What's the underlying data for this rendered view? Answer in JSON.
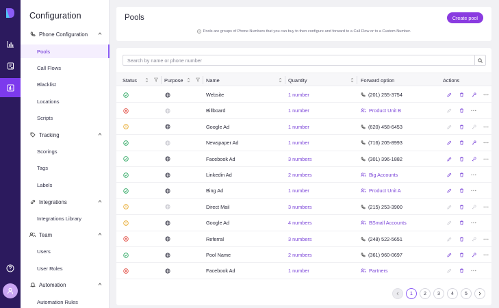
{
  "sidebar": {
    "title": "Configuration",
    "sections": [
      {
        "label": "Phone Configuration",
        "icon": "phone-icon",
        "items": [
          "Pools",
          "Call Flows",
          "Blacklist",
          "Locations",
          "Scripts"
        ]
      },
      {
        "label": "Tracking",
        "icon": "tag-icon",
        "items": [
          "Scorings",
          "Tags",
          "Labels"
        ]
      },
      {
        "label": "Integrations",
        "icon": "link-icon",
        "items": [
          "Integrations Library"
        ]
      },
      {
        "label": "Team",
        "icon": "users-icon",
        "items": [
          "Users",
          "User Roles"
        ]
      },
      {
        "label": "Automation",
        "icon": "bell-icon",
        "items": [
          "Automation Rules"
        ]
      }
    ],
    "active_item": "Pools"
  },
  "header": {
    "title": "Pools",
    "create_label": "Create pool",
    "note": "Pools are groups of Phone Numbers that you can buy to then configure and forward to a Call Flow or to a Custom Number."
  },
  "search": {
    "placeholder": "Search by name or phone number"
  },
  "columns": {
    "status": "Status",
    "purpose": "Purpose",
    "name": "Name",
    "quantity": "Quantity",
    "forward": "Forward option",
    "actions": "Actions"
  },
  "rows": [
    {
      "status": "ok",
      "purpose_on": true,
      "name": "Website",
      "quantity": "1 number",
      "forward_type": "phone",
      "forward": "(201) 255-3754",
      "enabled": true
    },
    {
      "status": "error",
      "purpose_on": false,
      "name": "Billboard",
      "quantity": "1 number",
      "forward_type": "flow",
      "forward": "Product Unit B",
      "enabled": false
    },
    {
      "status": "warn",
      "purpose_on": true,
      "name": "Google Ad",
      "quantity": "1 number",
      "forward_type": "phone",
      "forward": "(620) 458-6453",
      "enabled": false
    },
    {
      "status": "ok",
      "purpose_on": false,
      "name": "Newspaper Ad",
      "quantity": "1 number",
      "forward_type": "phone",
      "forward": "(716) 205-8993",
      "enabled": true
    },
    {
      "status": "ok",
      "purpose_on": true,
      "name": "Facebook Ad",
      "quantity": "3 numbers",
      "forward_type": "phone",
      "forward": "(301) 396-1882",
      "enabled": true
    },
    {
      "status": "ok",
      "purpose_on": true,
      "name": "Linkedin Ad",
      "quantity": "2 numbers",
      "forward_type": "flow",
      "forward": "Big Accounts",
      "enabled": true
    },
    {
      "status": "ok",
      "purpose_on": true,
      "name": "Bing Ad",
      "quantity": "1 number",
      "forward_type": "flow",
      "forward": "Product Unit A",
      "enabled": true
    },
    {
      "status": "warn",
      "purpose_on": false,
      "name": "Direct Mail",
      "quantity": "3 numbers",
      "forward_type": "phone",
      "forward": "(215) 253-3900",
      "enabled": false
    },
    {
      "status": "warn",
      "purpose_on": true,
      "name": "Google Ad",
      "quantity": "4 numbers",
      "forward_type": "flow",
      "forward": "BSmall Accounts",
      "enabled": false
    },
    {
      "status": "error",
      "purpose_on": true,
      "name": "Referral",
      "quantity": "3 numbers",
      "forward_type": "phone",
      "forward": "(248) 522-5651",
      "enabled": false
    },
    {
      "status": "ok",
      "purpose_on": true,
      "name": "Pool Name",
      "quantity": "2 numbers",
      "forward_type": "phone",
      "forward": "(361) 960-0697",
      "enabled": true
    },
    {
      "status": "error",
      "purpose_on": true,
      "name": "Facebook Ad",
      "quantity": "1 number",
      "forward_type": "flow",
      "forward": "Partners",
      "enabled": false
    }
  ],
  "pagination": {
    "pages": [
      "1",
      "2",
      "3",
      "4",
      "5"
    ],
    "current": "1"
  },
  "colors": {
    "accent": "#8a3be0",
    "ok": "#22a35a",
    "error": "#e0463c",
    "warn": "#e6a21a",
    "rail": "#2c1a5e"
  }
}
